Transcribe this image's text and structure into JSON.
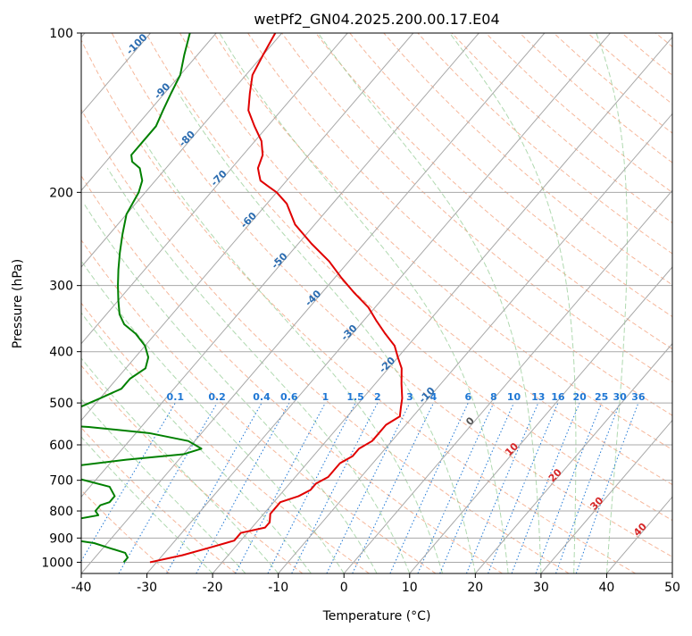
{
  "chart_data": {
    "type": "line",
    "title": "wetPf2_GN04.2025.200.00.17.E04",
    "xlabel": "Temperature (°C)",
    "ylabel": "Pressure (hPa)",
    "xlim": [
      -40,
      50
    ],
    "ylim": [
      1050,
      100
    ],
    "y_scale": "log",
    "grid": true,
    "x_ticks": [
      -40,
      -30,
      -20,
      -10,
      0,
      10,
      20,
      30,
      40,
      50
    ],
    "y_ticks": [
      100,
      200,
      300,
      400,
      500,
      600,
      700,
      800,
      900,
      1000
    ],
    "skew_isotherms": true,
    "colors": {
      "temperature": "#e00000",
      "dewpoint": "#008000",
      "isotherm": "#a8a8a8",
      "dry_adiabat": "#f4a582",
      "moist_adiabat": "#8fc98f",
      "mixing_ratio": "#1f77d4",
      "blue_label": "#2b6cb0",
      "red_label": "#d62728",
      "gray_label": "#555555",
      "tan_curve": "#d2b48c"
    },
    "temperature_labels": [
      {
        "text": "-100",
        "t": -100,
        "p": 106
      },
      {
        "text": "-90",
        "t": -90,
        "p": 130
      },
      {
        "text": "-80",
        "t": -80,
        "p": 160
      },
      {
        "text": "-70",
        "t": -70,
        "p": 190
      },
      {
        "text": "-60",
        "t": -60,
        "p": 228
      },
      {
        "text": "-50",
        "t": -50,
        "p": 272
      },
      {
        "text": "-40",
        "t": -40,
        "p": 320
      },
      {
        "text": "-30",
        "t": -30,
        "p": 372
      },
      {
        "text": "-20",
        "t": -20,
        "p": 428
      },
      {
        "text": "-10",
        "t": -10,
        "p": 488
      },
      {
        "text": "0",
        "t": 0,
        "p": 547
      },
      {
        "text": "10",
        "t": 10,
        "p": 618
      },
      {
        "text": "20",
        "t": 20,
        "p": 692
      },
      {
        "text": "30",
        "t": 30,
        "p": 782
      },
      {
        "text": "40",
        "t": 40,
        "p": 876
      }
    ],
    "mixing_ratio_labels": [
      "0.1",
      "0.2",
      "0.4",
      "0.6",
      "1",
      "1.5",
      "2",
      "3",
      "4",
      "6",
      "8",
      "10",
      "13",
      "16",
      "20",
      "25",
      "30",
      "36"
    ],
    "series": [
      {
        "name": "Temperature",
        "points": [
          [
            -31,
            1000
          ],
          [
            -27,
            970
          ],
          [
            -24,
            940
          ],
          [
            -21,
            910
          ],
          [
            -21,
            880
          ],
          [
            -18,
            860
          ],
          [
            -18,
            840
          ],
          [
            -19,
            810
          ],
          [
            -19,
            790
          ],
          [
            -19,
            770
          ],
          [
            -17,
            750
          ],
          [
            -16,
            730
          ],
          [
            -16,
            710
          ],
          [
            -15,
            690
          ],
          [
            -15,
            670
          ],
          [
            -15,
            650
          ],
          [
            -14,
            630
          ],
          [
            -14,
            610
          ],
          [
            -13,
            590
          ],
          [
            -13,
            570
          ],
          [
            -13,
            550
          ],
          [
            -12,
            530
          ],
          [
            -13,
            510
          ],
          [
            -14,
            490
          ],
          [
            -16,
            460
          ],
          [
            -18,
            430
          ],
          [
            -20,
            410
          ],
          [
            -22,
            390
          ],
          [
            -25,
            370
          ],
          [
            -28,
            350
          ],
          [
            -31,
            330
          ],
          [
            -35,
            310
          ],
          [
            -39,
            290
          ],
          [
            -43,
            270
          ],
          [
            -48,
            250
          ],
          [
            -53,
            230
          ],
          [
            -57,
            210
          ],
          [
            -60,
            200
          ],
          [
            -62,
            195
          ],
          [
            -64,
            190
          ],
          [
            -65,
            185
          ],
          [
            -66,
            180
          ],
          [
            -67,
            170
          ],
          [
            -69,
            160
          ],
          [
            -72,
            150
          ],
          [
            -75,
            140
          ],
          [
            -77,
            130
          ],
          [
            -79,
            120
          ],
          [
            -80,
            110
          ],
          [
            -81,
            100
          ]
        ]
      },
      {
        "name": "Dewpoint",
        "points": [
          [
            -35,
            1000
          ],
          [
            -35,
            980
          ],
          [
            -36,
            960
          ],
          [
            -39,
            940
          ],
          [
            -42,
            920
          ],
          [
            -48,
            900
          ],
          [
            -52,
            880
          ],
          [
            -54,
            860
          ],
          [
            -55,
            850
          ],
          [
            -54,
            840
          ],
          [
            -48,
            830
          ],
          [
            -45,
            815
          ],
          [
            -46,
            800
          ],
          [
            -46,
            780
          ],
          [
            -45,
            770
          ],
          [
            -45,
            750
          ],
          [
            -47,
            720
          ],
          [
            -54,
            690
          ],
          [
            -57,
            670
          ],
          [
            -56,
            660
          ],
          [
            -48,
            640
          ],
          [
            -40,
            625
          ],
          [
            -38,
            610
          ],
          [
            -41,
            590
          ],
          [
            -48,
            570
          ],
          [
            -58,
            555
          ],
          [
            -70,
            545
          ],
          [
            -77,
            540
          ],
          [
            -78,
            535
          ],
          [
            -70,
            530
          ],
          [
            -64,
            520
          ],
          [
            -62,
            510
          ],
          [
            -60,
            490
          ],
          [
            -58,
            470
          ],
          [
            -58,
            450
          ],
          [
            -57,
            430
          ],
          [
            -58,
            410
          ],
          [
            -60,
            390
          ],
          [
            -63,
            370
          ],
          [
            -66,
            355
          ],
          [
            -68,
            340
          ],
          [
            -70,
            320
          ],
          [
            -72,
            300
          ],
          [
            -74,
            280
          ],
          [
            -76,
            260
          ],
          [
            -78,
            240
          ],
          [
            -80,
            220
          ],
          [
            -81,
            200
          ],
          [
            -82,
            190
          ],
          [
            -84,
            180
          ],
          [
            -86,
            175
          ],
          [
            -87,
            170
          ],
          [
            -87,
            165
          ],
          [
            -87,
            160
          ],
          [
            -87,
            150
          ],
          [
            -88,
            140
          ],
          [
            -89,
            130
          ],
          [
            -90,
            120
          ],
          [
            -92,
            110
          ],
          [
            -94,
            100
          ]
        ]
      }
    ]
  }
}
